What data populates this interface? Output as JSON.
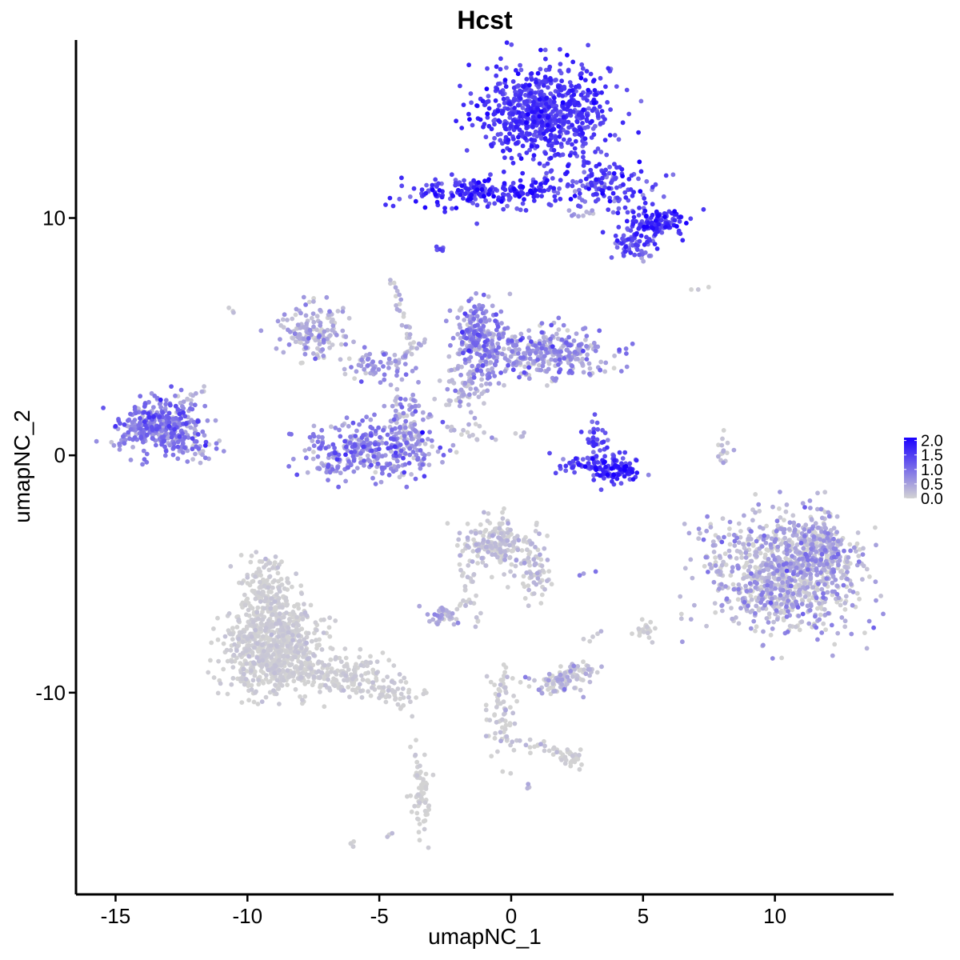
{
  "chart_data": {
    "type": "scatter",
    "title": "Hcst",
    "xlabel": "umapNC_1",
    "ylabel": "umapNC_2",
    "xlim": [
      -16.5,
      14.5
    ],
    "ylim": [
      -18.5,
      17.5
    ],
    "x_ticks": [
      -15,
      -10,
      -5,
      0,
      5,
      10
    ],
    "x_tick_labels": [
      "-15",
      "-10",
      "-5",
      "0",
      "5",
      "10"
    ],
    "y_ticks": [
      -10,
      0,
      10
    ],
    "y_tick_labels": [
      "-10",
      "0",
      "10"
    ],
    "grid": false,
    "color_scale": {
      "low_color": "#d3d3d3",
      "high_color": "#1a00ff",
      "min": 0.0,
      "max": 2.1,
      "legend_position": "right",
      "legend_ticks": [
        "0.0",
        "0.5",
        "1.0",
        "1.5",
        "2.0"
      ]
    },
    "clusters": [
      {
        "cx": 1.3,
        "cy": 14.5,
        "sx": 1.2,
        "sy": 1.0,
        "n": 700,
        "expr_mean": 1.5,
        "expr_sd": 0.25
      },
      {
        "cx": -1.5,
        "cy": 11.1,
        "sx": 1.2,
        "sy": 0.35,
        "n": 170,
        "expr_mean": 1.6,
        "expr_sd": 0.3
      },
      {
        "cx": 0.6,
        "cy": 11.1,
        "sx": 0.5,
        "sy": 0.25,
        "n": 40,
        "expr_mean": 1.7,
        "expr_sd": 0.3
      },
      {
        "cx": 3.4,
        "cy": 11.3,
        "sx": 1.2,
        "sy": 0.55,
        "n": 150,
        "expr_mean": 1.4,
        "expr_sd": 0.35
      },
      {
        "cx": 5.4,
        "cy": 9.8,
        "sx": 0.6,
        "sy": 0.4,
        "n": 130,
        "expr_mean": 1.6,
        "expr_sd": 0.3
      },
      {
        "cx": 4.6,
        "cy": 8.9,
        "sx": 0.4,
        "sy": 0.35,
        "n": 50,
        "expr_mean": 1.2,
        "expr_sd": 0.3
      },
      {
        "cx": -2.7,
        "cy": 8.6,
        "sx": 0.12,
        "sy": 0.12,
        "n": 8,
        "expr_mean": 1.3,
        "expr_sd": 0.2
      },
      {
        "cx": -13.3,
        "cy": 1.2,
        "sx": 0.8,
        "sy": 0.6,
        "n": 350,
        "expr_mean": 0.8,
        "expr_sd": 0.35
      },
      {
        "cx": -12.0,
        "cy": 0.3,
        "sx": 0.35,
        "sy": 0.3,
        "n": 25,
        "expr_mean": 0.6,
        "expr_sd": 0.3
      },
      {
        "cx": -7.5,
        "cy": 5.2,
        "sx": 0.6,
        "sy": 0.6,
        "n": 150,
        "expr_mean": 0.35,
        "expr_sd": 0.3
      },
      {
        "cx": -5.0,
        "cy": 3.8,
        "sx": 0.7,
        "sy": 0.4,
        "n": 60,
        "expr_mean": 0.5,
        "expr_sd": 0.3
      },
      {
        "cx": -5.4,
        "cy": 0.2,
        "sx": 1.4,
        "sy": 0.55,
        "n": 320,
        "expr_mean": 0.75,
        "expr_sd": 0.35
      },
      {
        "cx": -3.9,
        "cy": 1.5,
        "sx": 0.35,
        "sy": 0.6,
        "n": 70,
        "expr_mean": 0.5,
        "expr_sd": 0.3
      },
      {
        "cx": -1.2,
        "cy": 5.0,
        "sx": 0.45,
        "sy": 0.8,
        "n": 220,
        "expr_mean": 0.7,
        "expr_sd": 0.35
      },
      {
        "cx": 1.3,
        "cy": 4.3,
        "sx": 1.2,
        "sy": 0.5,
        "n": 320,
        "expr_mean": 0.6,
        "expr_sd": 0.35
      },
      {
        "cx": -1.8,
        "cy": 3.0,
        "sx": 0.5,
        "sy": 0.5,
        "n": 60,
        "expr_mean": 0.3,
        "expr_sd": 0.25
      },
      {
        "cx": 3.8,
        "cy": -0.6,
        "sx": 0.45,
        "sy": 0.3,
        "n": 120,
        "expr_mean": 1.6,
        "expr_sd": 0.35
      },
      {
        "cx": 3.2,
        "cy": 0.5,
        "sx": 0.2,
        "sy": 0.5,
        "n": 40,
        "expr_mean": 1.3,
        "expr_sd": 0.35
      },
      {
        "cx": 2.5,
        "cy": -0.4,
        "sx": 0.35,
        "sy": 0.2,
        "n": 25,
        "expr_mean": 1.2,
        "expr_sd": 0.35
      },
      {
        "cx": 8.1,
        "cy": 0.2,
        "sx": 0.15,
        "sy": 0.4,
        "n": 15,
        "expr_mean": 0.2,
        "expr_sd": 0.2
      },
      {
        "cx": 10.4,
        "cy": -5.0,
        "sx": 1.5,
        "sy": 1.2,
        "n": 900,
        "expr_mean": 0.25,
        "expr_sd": 0.35
      },
      {
        "cx": 11.8,
        "cy": -3.9,
        "sx": 0.6,
        "sy": 0.8,
        "n": 150,
        "expr_mean": 0.25,
        "expr_sd": 0.35
      },
      {
        "cx": -9.0,
        "cy": -8.2,
        "sx": 0.9,
        "sy": 0.9,
        "n": 700,
        "expr_mean": 0.02,
        "expr_sd": 0.08
      },
      {
        "cx": -9.2,
        "cy": -6.0,
        "sx": 0.5,
        "sy": 0.8,
        "n": 200,
        "expr_mean": 0.02,
        "expr_sd": 0.08
      },
      {
        "cx": -6.6,
        "cy": -9.3,
        "sx": 1.2,
        "sy": 0.5,
        "n": 180,
        "expr_mean": 0.03,
        "expr_sd": 0.08
      },
      {
        "cx": -4.5,
        "cy": -10.1,
        "sx": 0.5,
        "sy": 0.3,
        "n": 40,
        "expr_mean": 0.02,
        "expr_sd": 0.05
      },
      {
        "cx": -0.6,
        "cy": -3.8,
        "sx": 0.7,
        "sy": 0.5,
        "n": 200,
        "expr_mean": 0.1,
        "expr_sd": 0.2
      },
      {
        "cx": 0.9,
        "cy": -4.9,
        "sx": 0.3,
        "sy": 0.6,
        "n": 50,
        "expr_mean": 0.1,
        "expr_sd": 0.2
      },
      {
        "cx": -2.6,
        "cy": -6.8,
        "sx": 0.35,
        "sy": 0.2,
        "n": 40,
        "expr_mean": 0.3,
        "expr_sd": 0.3
      },
      {
        "cx": -1.7,
        "cy": -5.3,
        "sx": 0.2,
        "sy": 0.5,
        "n": 20,
        "expr_mean": 0.05,
        "expr_sd": 0.1
      },
      {
        "cx": 1.7,
        "cy": -9.6,
        "sx": 0.55,
        "sy": 0.25,
        "n": 70,
        "expr_mean": 0.15,
        "expr_sd": 0.3
      },
      {
        "cx": 2.4,
        "cy": -9.1,
        "sx": 0.4,
        "sy": 0.2,
        "n": 40,
        "expr_mean": 0.1,
        "expr_sd": 0.25
      },
      {
        "cx": -0.4,
        "cy": -11.0,
        "sx": 0.3,
        "sy": 1.0,
        "n": 60,
        "expr_mean": 0.05,
        "expr_sd": 0.15
      },
      {
        "cx": 2.3,
        "cy": -12.8,
        "sx": 0.25,
        "sy": 0.2,
        "n": 30,
        "expr_mean": 0.0,
        "expr_sd": 0.05
      },
      {
        "cx": -3.4,
        "cy": -14.6,
        "sx": 0.2,
        "sy": 0.7,
        "n": 60,
        "expr_mean": 0.0,
        "expr_sd": 0.05
      },
      {
        "cx": 5.0,
        "cy": -7.3,
        "sx": 0.3,
        "sy": 0.15,
        "n": 15,
        "expr_mean": 0.0,
        "expr_sd": 0.05
      },
      {
        "cx": -6.0,
        "cy": -16.3,
        "sx": 0.1,
        "sy": 0.1,
        "n": 5,
        "expr_mean": 0.0,
        "expr_sd": 0.05
      }
    ],
    "streaks": [
      {
        "x1": -4.5,
        "y1": 7.4,
        "x2": -3.8,
        "y2": 4.5,
        "n": 25,
        "expr_mean": 0.2
      },
      {
        "x1": -3.3,
        "y1": 4.8,
        "x2": -4.4,
        "y2": 3.9,
        "n": 18,
        "expr_mean": 0.3
      },
      {
        "x1": -4.3,
        "y1": 2.6,
        "x2": -4.3,
        "y2": 1.5,
        "n": 10,
        "expr_mean": 0.2
      },
      {
        "x1": -2.1,
        "y1": 2.2,
        "x2": -1.3,
        "y2": 3.6,
        "n": 15,
        "expr_mean": 0.3
      },
      {
        "x1": -2.5,
        "y1": 1.2,
        "x2": -1.2,
        "y2": 0.7,
        "n": 12,
        "expr_mean": 0.1
      },
      {
        "x1": -0.6,
        "y1": 0.7,
        "x2": -1.5,
        "y2": 1.5,
        "n": 6,
        "expr_mean": 0.1
      },
      {
        "x1": 0.1,
        "y1": 0.9,
        "x2": 0.5,
        "y2": 0.8,
        "n": 4,
        "expr_mean": 0.1
      },
      {
        "x1": 1.5,
        "y1": 12.8,
        "x2": 1.2,
        "y2": 11.4,
        "n": 10,
        "expr_mean": 1.3
      },
      {
        "x1": 2.2,
        "y1": 10.2,
        "x2": 3.1,
        "y2": 10.2,
        "n": 8,
        "expr_mean": 0.3
      },
      {
        "x1": -14.9,
        "y1": 0.6,
        "x2": -14.8,
        "y2": 0.3,
        "n": 5,
        "expr_mean": 0.6
      },
      {
        "x1": -12.6,
        "y1": 2.1,
        "x2": -11.6,
        "y2": 2.8,
        "n": 12,
        "expr_mean": 0.3
      },
      {
        "x1": 7.5,
        "y1": 7.1,
        "x2": 6.8,
        "y2": 7.0,
        "n": 3,
        "expr_mean": 0.1
      },
      {
        "x1": -10.6,
        "y1": 6.2,
        "x2": -10.5,
        "y2": 6.0,
        "n": 3,
        "expr_mean": 0.0
      },
      {
        "x1": -1.0,
        "y1": -11.8,
        "x2": 2.2,
        "y2": -12.6,
        "n": 20,
        "expr_mean": 0.0
      },
      {
        "x1": 0.8,
        "y1": -12.0,
        "x2": 1.9,
        "y2": -12.6,
        "n": 8,
        "expr_mean": 0.0
      },
      {
        "x1": -3.6,
        "y1": -12.1,
        "x2": -3.5,
        "y2": -13.5,
        "n": 8,
        "expr_mean": 0.0
      },
      {
        "x1": -1.6,
        "y1": -6.2,
        "x2": -2.3,
        "y2": -6.5,
        "n": 6,
        "expr_mean": 0.05
      },
      {
        "x1": 0.6,
        "y1": -13.9,
        "x2": 0.7,
        "y2": -14.0,
        "n": 3,
        "expr_mean": 0.3
      },
      {
        "x1": -4.5,
        "y1": -15.9,
        "x2": -4.7,
        "y2": -16.0,
        "n": 3,
        "expr_mean": 0.0
      },
      {
        "x1": 2.8,
        "y1": -7.8,
        "x2": 3.4,
        "y2": -7.4,
        "n": 5,
        "expr_mean": 0.2
      },
      {
        "x1": 4.9,
        "y1": -7.0,
        "x2": 5.3,
        "y2": -7.8,
        "n": 6,
        "expr_mean": 0.0
      },
      {
        "x1": 3.2,
        "y1": -5.0,
        "x2": 2.6,
        "y2": -5.1,
        "n": 3,
        "expr_mean": 0.6
      },
      {
        "x1": -1.1,
        "y1": -6.7,
        "x2": -1.4,
        "y2": -7.2,
        "n": 5,
        "expr_mean": 0.1
      },
      {
        "x1": -0.3,
        "y1": -8.8,
        "x2": -0.4,
        "y2": -10.0,
        "n": 8,
        "expr_mean": 0.0
      },
      {
        "x1": 5.0,
        "y1": 8.1,
        "x2": 5.2,
        "y2": 8.3,
        "n": 3,
        "expr_mean": 0.3
      }
    ]
  }
}
